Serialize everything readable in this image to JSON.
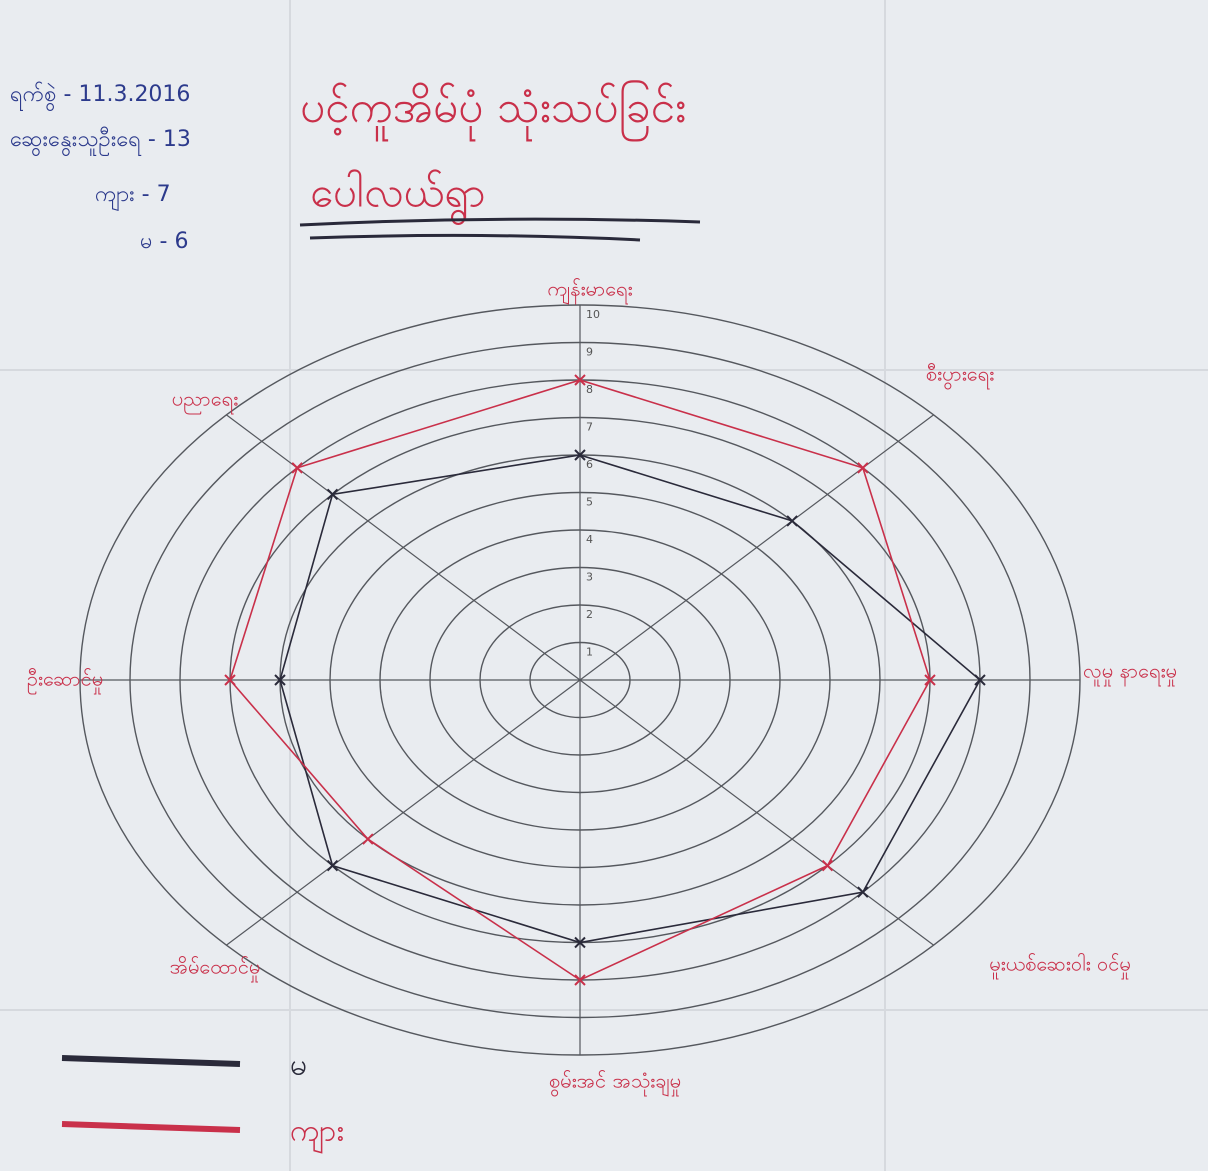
{
  "chart_data": {
    "type": "radar",
    "title": "ပင့်ကူအိမ်ပုံ သုံးသပ်ခြင်း",
    "subtitle": "ပေါလယ်ရွာ",
    "annotations": [
      "ရက်စွဲ - 11.3.2016",
      "ဆွေးနွေးသူဦးရေ - 13",
      "ကျား - 7",
      "မ - 6"
    ],
    "categories": [
      "ကျန်းမာရေး",
      "စီးပွားရေး",
      "လူမှု နာရေးမှု",
      "မူးယစ်ဆေးဝါး ဝင်မှု",
      "စွမ်းအင် အသုံးချမှု",
      "အိမ်ထောင်မှု",
      "ဦးဆောင်မှု",
      "ပညာရေး"
    ],
    "rlim": [
      0,
      10
    ],
    "rticks": [
      1,
      2,
      3,
      4,
      5,
      6,
      7,
      8,
      9,
      10
    ],
    "series": [
      {
        "name": "မ",
        "color": "#2a2a3a",
        "values": [
          6,
          6,
          8,
          8,
          7,
          7,
          6,
          7
        ]
      },
      {
        "name": "ကျား",
        "color": "#c9304a",
        "values": [
          8,
          8,
          7,
          7,
          8,
          6,
          7,
          8
        ]
      }
    ]
  }
}
